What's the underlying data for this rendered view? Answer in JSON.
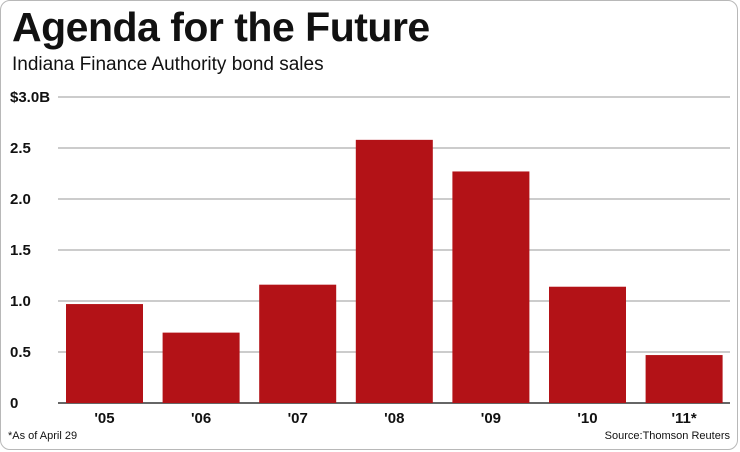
{
  "header": {
    "title": "Agenda for the Future",
    "subtitle": "Indiana Finance Authority bond sales"
  },
  "footer": {
    "note": "*As of April 29",
    "source": "Source:Thomson Reuters"
  },
  "colors": {
    "bar": "#b31217",
    "grid": "#9a9a9a",
    "text": "#111111"
  },
  "chart_data": {
    "type": "bar",
    "title": "Agenda for the Future",
    "subtitle": "Indiana Finance Authority bond sales",
    "categories": [
      "'05",
      "'06",
      "'07",
      "'08",
      "'09",
      "'10",
      "'11*"
    ],
    "values": [
      0.97,
      0.69,
      1.16,
      2.58,
      2.27,
      1.14,
      0.47
    ],
    "ylim": [
      0,
      3.0
    ],
    "yticks": [
      0,
      0.5,
      1.0,
      1.5,
      2.0,
      2.5,
      3.0
    ],
    "ytick_labels": [
      "0",
      "0.5",
      "1.0",
      "1.5",
      "2.0",
      "2.5",
      "$3.0B"
    ],
    "xlabel": "",
    "ylabel": "",
    "grid": true,
    "legend": "none"
  }
}
